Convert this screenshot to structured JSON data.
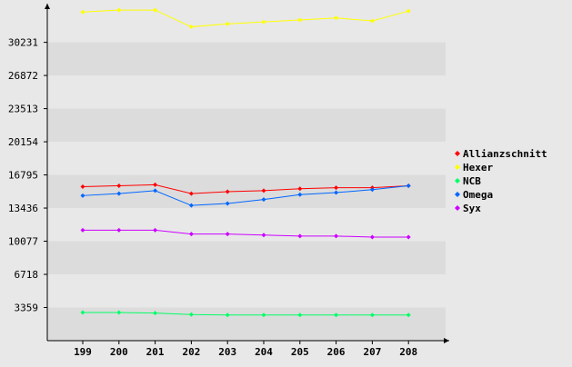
{
  "chart_data": {
    "type": "line",
    "title": "",
    "xlabel": "",
    "ylabel": "",
    "categories": [
      "199",
      "200",
      "201",
      "202",
      "203",
      "204",
      "205",
      "206",
      "207",
      "208"
    ],
    "yticks": [
      "3359",
      "6718",
      "10077",
      "13436",
      "16795",
      "20154",
      "23513",
      "26872",
      "30231"
    ],
    "ylim": [
      0,
      33600
    ],
    "grid": "alternating horizontal bands",
    "legend_position": "right",
    "background": "#e8e8e8",
    "band_color": "#dcdcdc",
    "series": [
      {
        "name": "Allianzschnitt",
        "color": "#ff0000",
        "values": [
          15600,
          15700,
          15800,
          14900,
          15100,
          15200,
          15400,
          15500,
          15500,
          15700
        ]
      },
      {
        "name": "Hexer",
        "color": "#ffff00",
        "values": [
          33300,
          33500,
          33500,
          31800,
          32100,
          32300,
          32500,
          32700,
          32400,
          33400
        ]
      },
      {
        "name": "NCB",
        "color": "#00ff66",
        "values": [
          2850,
          2850,
          2800,
          2650,
          2600,
          2600,
          2600,
          2600,
          2600,
          2600
        ]
      },
      {
        "name": "Omega",
        "color": "#0066ff",
        "values": [
          14700,
          14900,
          15200,
          13700,
          13900,
          14300,
          14800,
          15000,
          15300,
          15700
        ]
      },
      {
        "name": "Syx",
        "color": "#cc00ff",
        "values": [
          11200,
          11200,
          11200,
          10800,
          10800,
          10700,
          10600,
          10600,
          10500,
          10500
        ]
      }
    ]
  }
}
